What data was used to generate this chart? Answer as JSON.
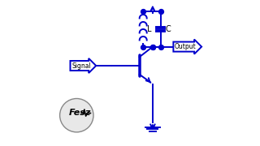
{
  "bg_color": "#ffffff",
  "circuit_color": "#0000cc",
  "dot_color": "#0000cc",
  "line_width": 1.4,
  "dot_size": 18,
  "labels": {
    "L": "L",
    "C": "C",
    "Signal": "Signal",
    "Output": "Output"
  },
  "logo_text": "Fesz",
  "title_color": "#000000",
  "logo_circle_color": "#cccccc",
  "logo_circle_edge": "#888888"
}
